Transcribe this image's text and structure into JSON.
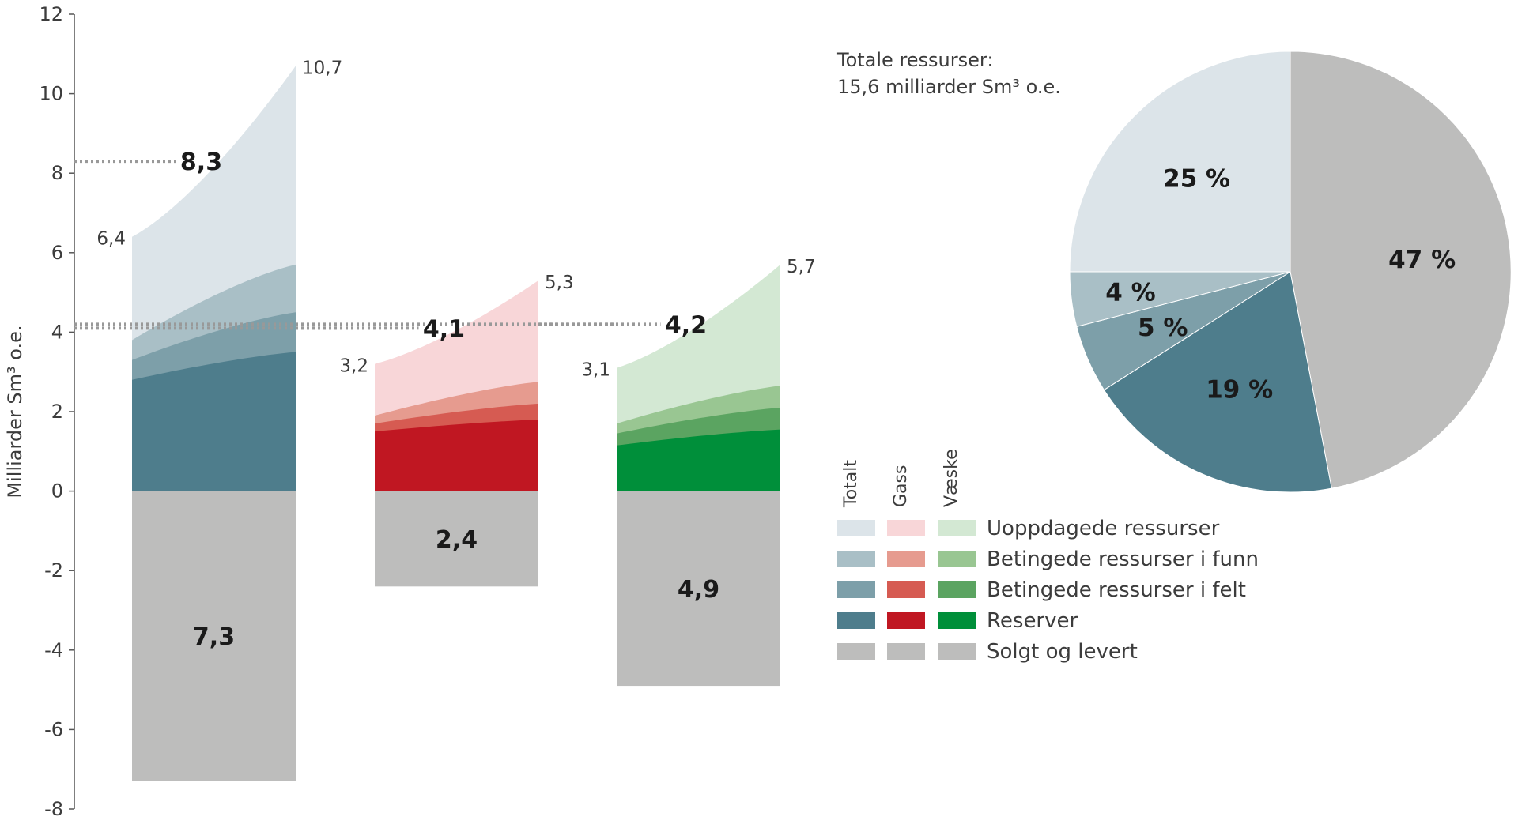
{
  "chart_data": {
    "type": "area",
    "ylabel": "Milliarder Sm³ o.e.",
    "ylim": [
      -8,
      12
    ],
    "yticks": [
      "12",
      "10",
      "8",
      "6",
      "4",
      "2",
      "0",
      "-2",
      "-4",
      "-6",
      "-8"
    ],
    "groups": [
      {
        "name": "Totalt",
        "sold_value": 7.3,
        "sold_label": "7,3",
        "layers_start": [
          2.8,
          3.3,
          3.8,
          6.4
        ],
        "layers_end": [
          3.5,
          4.5,
          5.7,
          10.7
        ],
        "start_label": "6,4",
        "end_label": "10,7",
        "expected_value": 8.3,
        "expected_label": "8,3",
        "colors": [
          "#4e7d8c",
          "#7d9fa9",
          "#a9bfc6",
          "#dce4e9"
        ]
      },
      {
        "name": "Gass",
        "sold_value": 2.4,
        "sold_label": "2,4",
        "layers_start": [
          1.5,
          1.7,
          1.9,
          3.2
        ],
        "layers_end": [
          1.8,
          2.2,
          2.75,
          5.3
        ],
        "start_label": "3,2",
        "end_label": "5,3",
        "expected_value": 4.1,
        "expected_label": "4,1",
        "colors": [
          "#c01722",
          "#d65b52",
          "#e69b8f",
          "#f8d6d8"
        ]
      },
      {
        "name": "Væske",
        "sold_value": 4.9,
        "sold_label": "4,9",
        "layers_start": [
          1.15,
          1.45,
          1.7,
          3.1
        ],
        "layers_end": [
          1.55,
          2.1,
          2.65,
          5.7
        ],
        "start_label": "3,1",
        "end_label": "5,7",
        "expected_value": 4.2,
        "expected_label": "4,2",
        "colors": [
          "#008f3a",
          "#5ba461",
          "#99c692",
          "#d3e8d3"
        ]
      }
    ],
    "sold_color": "#bdbdbc",
    "legend": {
      "column_headers": [
        "Totalt",
        "Gass",
        "Væske"
      ],
      "items": [
        "Uoppdagede ressurser",
        "Betingede ressurser i funn",
        "Betingede ressurser i felt",
        "Reserver",
        "Solgt og levert"
      ]
    },
    "pie": {
      "type": "pie",
      "title_line1": "Totale ressurser:",
      "title_line2": "15,6 milliarder Sm³ o.e.",
      "slices": [
        {
          "value": 47,
          "label": "47 %",
          "color": "#bdbdbc"
        },
        {
          "value": 19,
          "label": "19 %",
          "color": "#4e7d8c"
        },
        {
          "value": 5,
          "label": "5 %",
          "color": "#7d9fa9"
        },
        {
          "value": 4,
          "label": "4 %",
          "color": "#a9bfc6"
        },
        {
          "value": 25,
          "label": "25 %",
          "color": "#dce4e9"
        }
      ]
    }
  }
}
